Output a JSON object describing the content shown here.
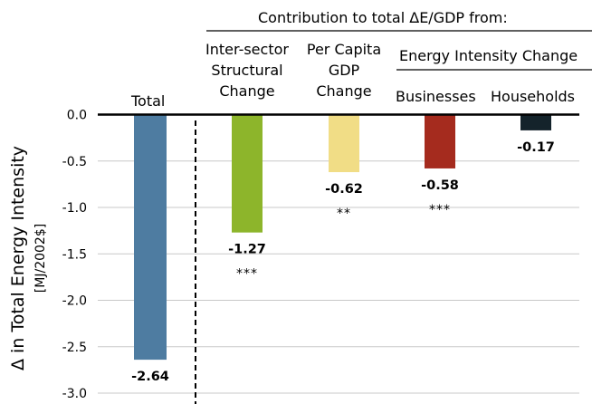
{
  "chart_data": {
    "type": "bar",
    "y_title": "Δ in Total Energy Intensity",
    "y_unit": "[MJ/2002$]",
    "header": "Contribution to total ΔE/GDP from:",
    "subheader": "Energy Intensity Change",
    "ylim": [
      -3.0,
      0.0
    ],
    "yticks": [
      "0.0",
      "-0.5",
      "-1.0",
      "-1.5",
      "-2.0",
      "-2.5",
      "-3.0"
    ],
    "grid": true,
    "colors": [
      "#4e7ca1",
      "#8db52b",
      "#f1dd86",
      "#a52b1e",
      "#14232b"
    ],
    "categories": [
      "Total",
      "Inter-sector Structural Change",
      "Per Capita GDP Change",
      "Businesses",
      "Households"
    ],
    "values": [
      -2.64,
      -1.27,
      -0.62,
      -0.58,
      -0.17
    ],
    "value_labels": [
      "-2.64",
      "-1.27",
      "-0.62",
      "-0.58",
      "-0.17"
    ],
    "significance": [
      "",
      "***",
      "**",
      "***",
      ""
    ]
  },
  "headers": {
    "total": "Total",
    "inter_line1": "Inter-sector",
    "inter_line2": "Structural",
    "inter_line3": "Change",
    "gdp_line1": "Per Capita",
    "gdp_line2": "GDP",
    "gdp_line3": "Change",
    "businesses": "Businesses",
    "households": "Households"
  }
}
